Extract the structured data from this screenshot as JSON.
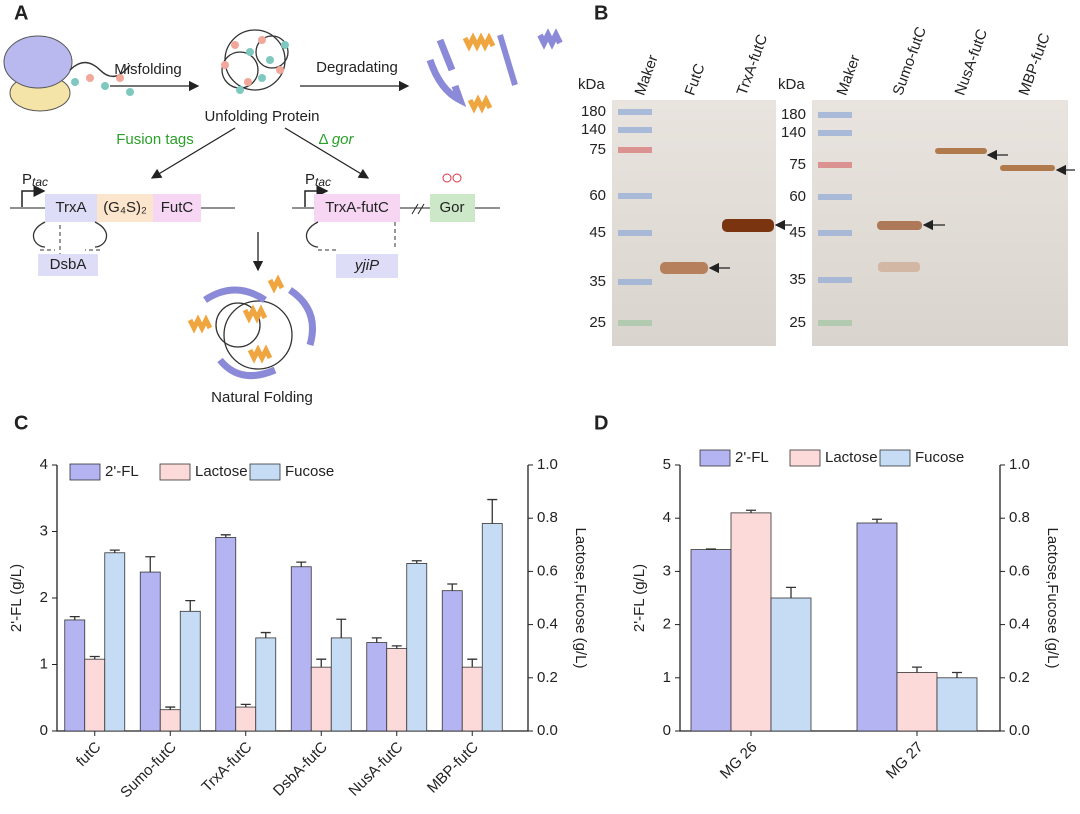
{
  "panel_letters": [
    "A",
    "B",
    "C",
    "D"
  ],
  "panel_a": {
    "misfolding": "Misfolding",
    "unfolding": "Unfolding Protein",
    "degradating": "Degradating",
    "fusion_tags": "Fusion tags",
    "delta": "Δ",
    "gor_gene": "gor",
    "promoter": "P",
    "promoter_sub": "tac",
    "trxa": "TrxA",
    "linker": "(G₄S)₂",
    "futc": "FutC",
    "dsba": "DsbA",
    "trxa_futc": "TrxA-futC",
    "gor": "Gor",
    "yjip": "yjiP",
    "natural_folding": "Natural Folding"
  },
  "panel_b": {
    "unit": "kDa",
    "left_lanes": [
      "Maker",
      "FutC",
      "TrxA-futC"
    ],
    "right_lanes": [
      "Maker",
      "Sumo-futC",
      "NusA-futC",
      "MBP-futC"
    ],
    "markers": [
      180,
      140,
      75,
      60,
      45,
      35,
      25
    ]
  },
  "chart_data": [
    {
      "type": "bar",
      "categories": [
        "futC",
        "Sumo-futC",
        "TrxA-futC",
        "DsbA-futC",
        "NusA-futC",
        "MBP-futC"
      ],
      "ylabel": "2'-FL (g/L)",
      "y2label": "Lactose,Fucose (g/L)",
      "ylim": [
        0,
        4
      ],
      "yticks": [
        0,
        1,
        2,
        3,
        4
      ],
      "y2lim": [
        0,
        1
      ],
      "y2ticks": [
        {
          "value": 0,
          "label": "0.0"
        },
        0.2,
        0.4,
        0.6,
        0.8,
        {
          "value": 1,
          "label": "1.0"
        }
      ],
      "legend": "top-left",
      "series": [
        {
          "name": "2'-FL",
          "color": "#b4b4f2",
          "values": [
            1.67,
            2.39,
            2.91,
            2.47,
            1.33,
            2.11
          ],
          "errors": [
            0.05,
            0.23,
            0.04,
            0.07,
            0.07,
            0.1
          ]
        },
        {
          "name": "Lactose",
          "color": "#fcdada",
          "axis": "y2",
          "values": [
            0.27,
            0.08,
            0.09,
            0.24,
            0.31,
            0.24
          ],
          "errors": [
            0.01,
            0.01,
            0.01,
            0.03,
            0.01,
            0.03
          ]
        },
        {
          "name": "Fucose",
          "color": "#c6dcf5",
          "axis": "y2",
          "values": [
            0.67,
            0.45,
            0.35,
            0.35,
            0.63,
            0.78
          ],
          "errors": [
            0.01,
            0.04,
            0.02,
            0.07,
            0.01,
            0.09
          ]
        }
      ]
    },
    {
      "type": "bar",
      "categories": [
        "MG 26",
        "MG 27"
      ],
      "ylabel": "2'-FL (g/L)",
      "y2label": "Lactose,Fucose (g/L)",
      "ylim": [
        0,
        5
      ],
      "yticks": [
        0,
        1,
        2,
        3,
        4,
        5
      ],
      "y2lim": [
        0,
        1
      ],
      "y2ticks": [
        {
          "value": 0,
          "label": "0.0"
        },
        0.2,
        0.4,
        0.6,
        0.8,
        {
          "value": 1,
          "label": "1.0"
        }
      ],
      "legend": "top-left",
      "series": [
        {
          "name": "2'-FL",
          "color": "#b4b4f2",
          "values": [
            3.41,
            3.91
          ],
          "errors": [
            0.01,
            0.07
          ]
        },
        {
          "name": "Lactose",
          "color": "#fcdada",
          "axis": "y2",
          "values": [
            0.82,
            0.22
          ],
          "errors": [
            0.01,
            0.02
          ]
        },
        {
          "name": "Fucose",
          "color": "#c6dcf5",
          "axis": "y2",
          "values": [
            0.5,
            0.2
          ],
          "errors": [
            0.04,
            0.02
          ]
        }
      ]
    }
  ]
}
